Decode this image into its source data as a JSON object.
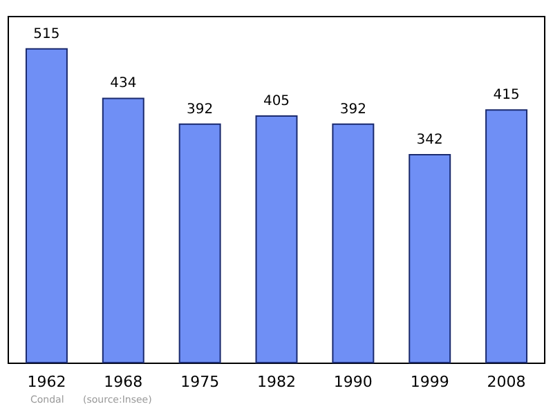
{
  "chart_data": {
    "type": "bar",
    "categories": [
      "1962",
      "1968",
      "1975",
      "1982",
      "1990",
      "1999",
      "2008"
    ],
    "values": [
      515,
      434,
      392,
      405,
      392,
      342,
      415
    ],
    "color": "#6f8ff5",
    "data_labels": true,
    "annotations": [
      "Condal",
      "(source:Insee)"
    ]
  }
}
